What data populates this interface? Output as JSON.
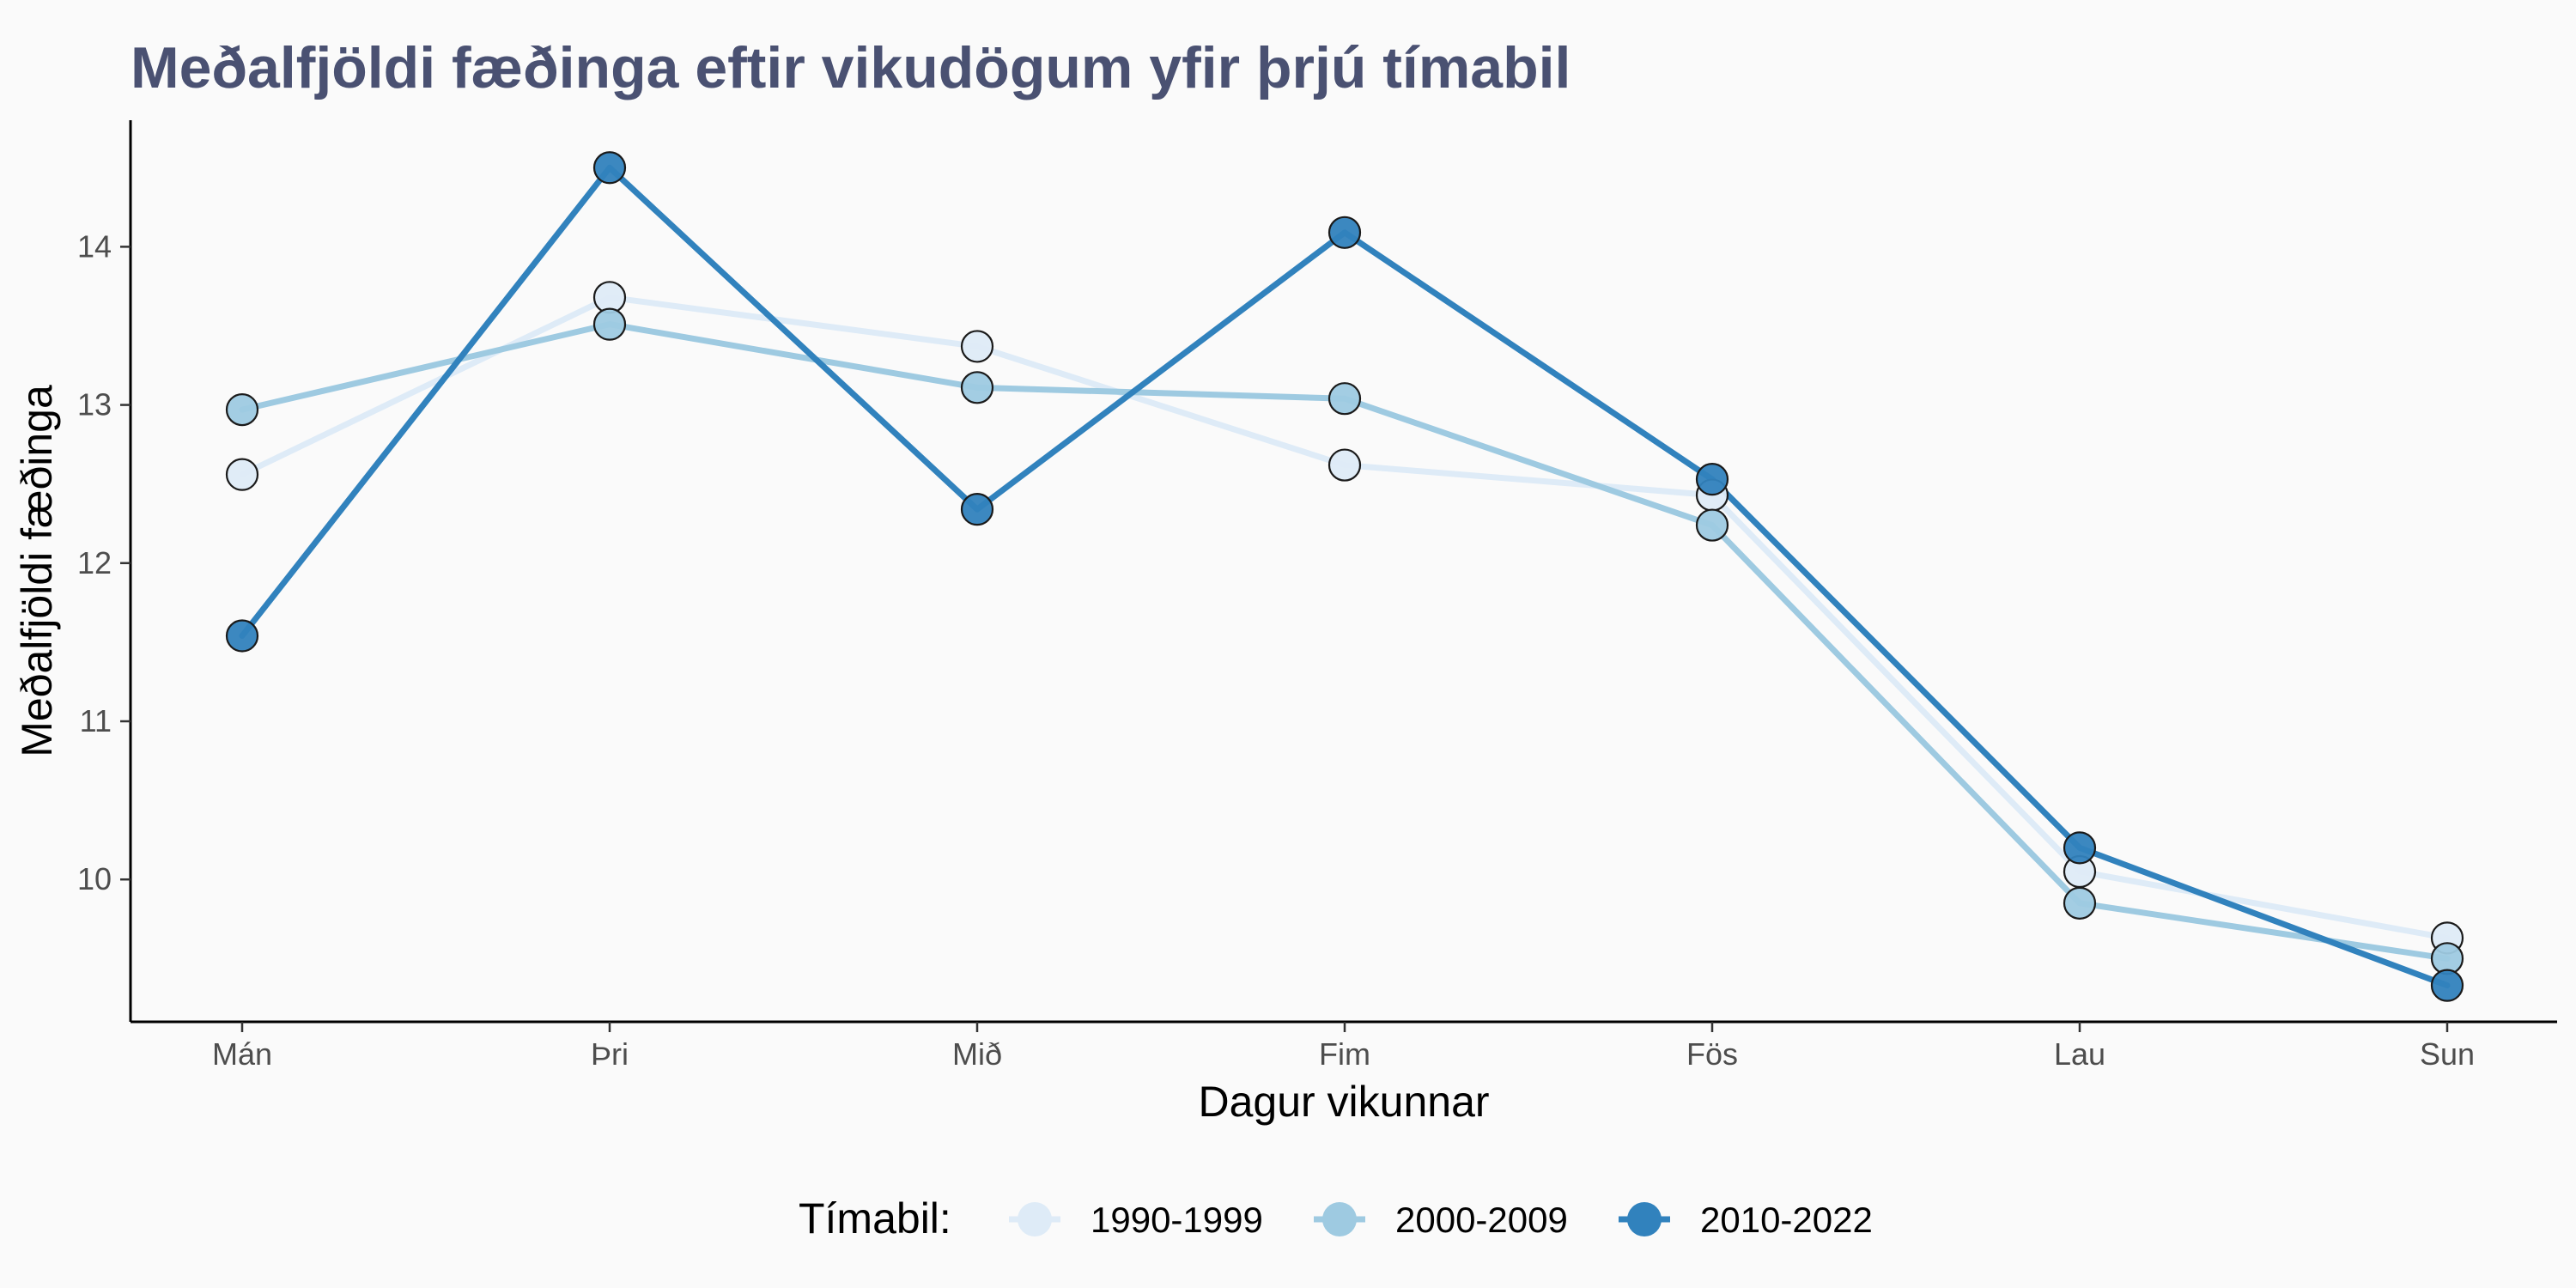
{
  "chart_data": {
    "type": "line",
    "title": "Meðalfjöldi fæðinga eftir vikudögum yfir þrjú tímabil",
    "xlabel": "Dagur vikunnar",
    "ylabel": "Meðalfjöldi fæðinga",
    "categories": [
      "Mán",
      "Þri",
      "Mið",
      "Fim",
      "Fös",
      "Lau",
      "Sun"
    ],
    "ylim": [
      9.1,
      14.8
    ],
    "yticks": [
      10,
      11,
      12,
      13,
      14
    ],
    "grid": false,
    "legend_position": "bottom",
    "legend_title": "Tímabil:",
    "series": [
      {
        "name": "1990-1999",
        "color": "#deebf7",
        "values": [
          12.56,
          13.68,
          13.37,
          12.62,
          12.43,
          10.05,
          9.63
        ]
      },
      {
        "name": "2000-2009",
        "color": "#9ecae1",
        "values": [
          12.97,
          13.51,
          13.11,
          13.04,
          12.24,
          9.85,
          9.5
        ]
      },
      {
        "name": "2010-2022",
        "color": "#3182bd",
        "values": [
          11.54,
          14.5,
          12.34,
          14.09,
          12.53,
          10.2,
          9.33
        ]
      }
    ],
    "colors": {
      "title": "#4a5172",
      "axis": "#000000",
      "tick_text": "#4d4d4d",
      "background": "#fafafa"
    }
  }
}
